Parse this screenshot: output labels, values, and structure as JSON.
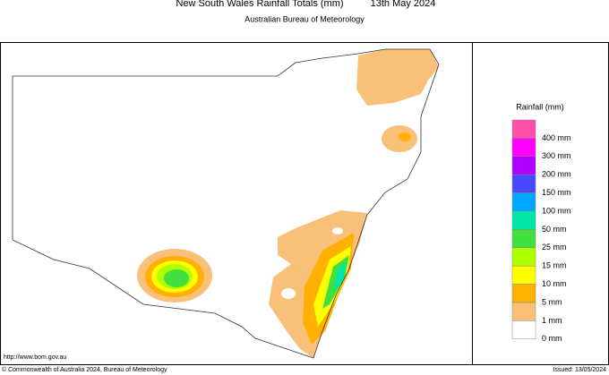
{
  "header": {
    "title": "New South Wales Rainfall Totals (mm)",
    "date": "13th May 2024",
    "subtitle": "Australian Bureau of Meteorology"
  },
  "legend": {
    "title": "Rainfall (mm)",
    "items": [
      {
        "label": "400 mm",
        "color": "#ff50a8"
      },
      {
        "label": "300 mm",
        "color": "#ff00ff"
      },
      {
        "label": "200 mm",
        "color": "#b000ff"
      },
      {
        "label": "150 mm",
        "color": "#4848ff"
      },
      {
        "label": "100 mm",
        "color": "#00a8ff"
      },
      {
        "label": "50 mm",
        "color": "#00e8a8"
      },
      {
        "label": "25 mm",
        "color": "#40e040"
      },
      {
        "label": "15 mm",
        "color": "#b0ff00"
      },
      {
        "label": "10 mm",
        "color": "#ffff00"
      },
      {
        "label": "5 mm",
        "color": "#ffb000"
      },
      {
        "label": "1 mm",
        "color": "#f8c078"
      },
      {
        "label": "0 mm",
        "color": "#ffffff"
      }
    ]
  },
  "footer": {
    "url": "http://www.bom.gov.au",
    "copyright": "© Commonwealth of Australia 2024, Bureau of Meteorology",
    "issued": "Issued: 13/05/2024"
  }
}
